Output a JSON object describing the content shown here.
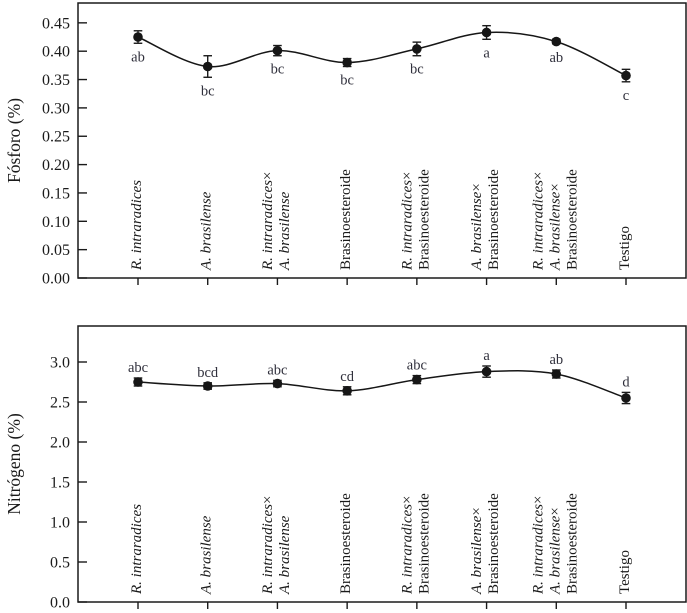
{
  "figure": {
    "description": "Two stacked point-line panels with error bars and significance letters",
    "colors": {
      "ink": "#1a1a1a",
      "letter": "#30303c",
      "curve": "#161616"
    }
  },
  "chart_data": [
    {
      "type": "line",
      "panel": "top",
      "ylabel": "Fósforo (%)",
      "categories": [
        "R. intraradices",
        "A. brasilense",
        "R. intraradices × A. brasilense",
        "Brasinoesteroide",
        "R. intraradices × Brasinoesteroide",
        "A. brasilense × Brasinoesteroide",
        "R. intraradices × A. brasilense × Brasinoesteroide",
        "Testigo"
      ],
      "values": [
        0.425,
        0.373,
        0.401,
        0.38,
        0.404,
        0.433,
        0.417,
        0.357
      ],
      "errors": [
        0.011,
        0.019,
        0.009,
        0.007,
        0.012,
        0.012,
        0.004,
        0.011
      ],
      "sig_letters": [
        "ab",
        "bc",
        "bc",
        "bc",
        "bc",
        "a",
        "ab",
        "c"
      ],
      "letters_position": "below",
      "ylim": [
        0,
        0.485
      ],
      "yticks": [
        "0.00",
        "0.05",
        "0.10",
        "0.15",
        "0.20",
        "0.25",
        "0.30",
        "0.35",
        "0.40",
        "0.45"
      ],
      "grid": false,
      "legend": null,
      "category_label_lines": [
        [
          {
            "text": "R. intraradices",
            "italic": true
          }
        ],
        [
          {
            "text": "A. brasilense",
            "italic": true
          }
        ],
        [
          {
            "text": "R. intraradices",
            "italic": true,
            "times": true
          },
          {
            "text": "A. brasilense",
            "italic": true
          }
        ],
        [
          {
            "text": "Brasinoesteroide",
            "italic": false
          }
        ],
        [
          {
            "text": "R. intraradices",
            "italic": true,
            "times": true
          },
          {
            "text": "Brasinoesteroide",
            "italic": false
          }
        ],
        [
          {
            "text": "A. brasilense",
            "italic": true,
            "times": true
          },
          {
            "text": "Brasinoesteroide",
            "italic": false
          }
        ],
        [
          {
            "text": "R. intraradices",
            "italic": true,
            "times": true
          },
          {
            "text": "A. brasilense",
            "italic": true,
            "times": true
          },
          {
            "text": "Brasinoesteroide",
            "italic": false
          }
        ],
        [
          {
            "text": "Testigo",
            "italic": false
          }
        ]
      ]
    },
    {
      "type": "line",
      "panel": "bottom",
      "ylabel": "Nitrógeno (%)",
      "categories": [
        "R. intraradices",
        "A. brasilense",
        "R. intraradices × A. brasilense",
        "Brasinoesteroide",
        "R. intraradices × Brasinoesteroide",
        "A. brasilense × Brasinoesteroide",
        "R. intraradices × A. brasilense × Brasinoesteroide",
        "Testigo"
      ],
      "values": [
        2.75,
        2.7,
        2.73,
        2.64,
        2.78,
        2.88,
        2.85,
        2.55
      ],
      "errors": [
        0.05,
        0.04,
        0.04,
        0.05,
        0.05,
        0.07,
        0.05,
        0.07
      ],
      "sig_letters": [
        "abc",
        "bcd",
        "abc",
        "cd",
        "abc",
        "a",
        "ab",
        "d"
      ],
      "letters_position": "above",
      "ylim": [
        0,
        3.45
      ],
      "yticks": [
        "0.0",
        "0.5",
        "1.0",
        "1.5",
        "2.0",
        "2.5",
        "3.0"
      ],
      "grid": false,
      "legend": null,
      "category_label_lines": [
        [
          {
            "text": "R. intraradices",
            "italic": true
          }
        ],
        [
          {
            "text": "A. brasilense",
            "italic": true
          }
        ],
        [
          {
            "text": "R. intraradices",
            "italic": true,
            "times": true
          },
          {
            "text": "A. brasilense",
            "italic": true
          }
        ],
        [
          {
            "text": "Brasinoesteroide",
            "italic": false
          }
        ],
        [
          {
            "text": "R. intraradices",
            "italic": true,
            "times": true
          },
          {
            "text": "Brasinoesteroide",
            "italic": false
          }
        ],
        [
          {
            "text": "A. brasilense",
            "italic": true,
            "times": true
          },
          {
            "text": "Brasinoesteroide",
            "italic": false
          }
        ],
        [
          {
            "text": "R. intraradices",
            "italic": true,
            "times": true
          },
          {
            "text": "A. brasilense",
            "italic": true,
            "times": true
          },
          {
            "text": "Brasinoesteroide",
            "italic": false
          }
        ],
        [
          {
            "text": "Testigo",
            "italic": false
          }
        ]
      ],
      "times_glyph": "×"
    }
  ]
}
